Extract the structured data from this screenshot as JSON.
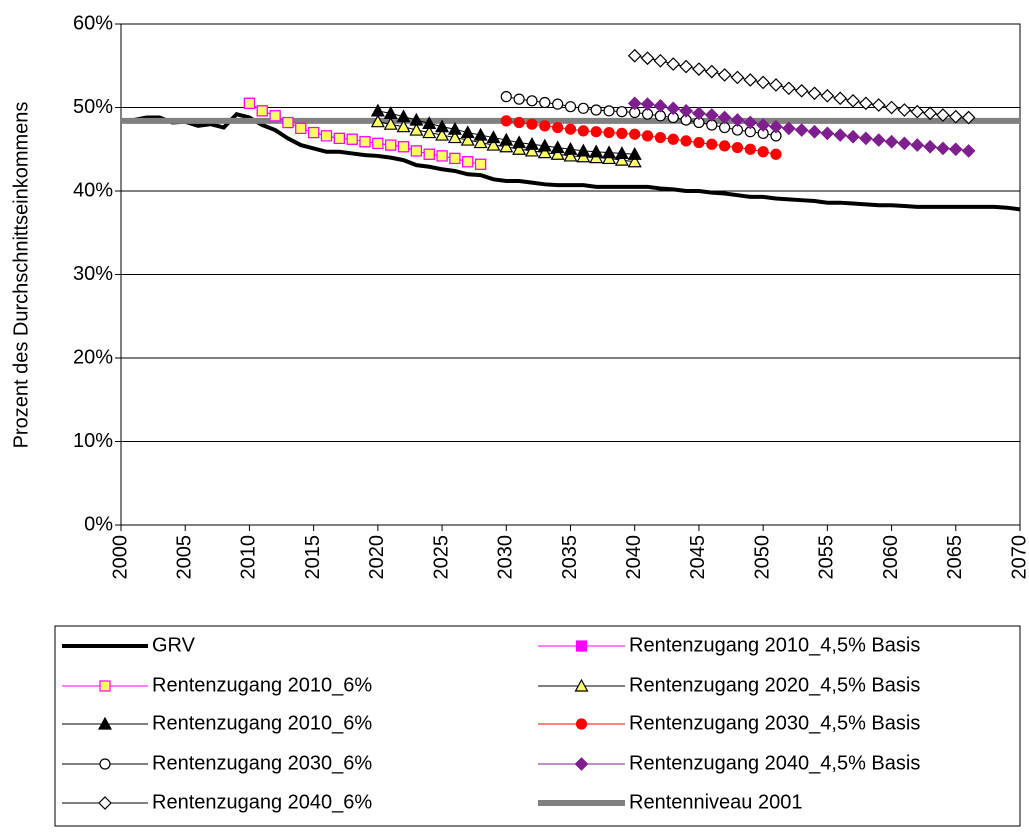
{
  "chart_data": {
    "type": "line",
    "y_label": "Prozent des Durchschnittseinkommens",
    "xlim": [
      2000,
      2070
    ],
    "xticks": [
      2000,
      2005,
      2010,
      2015,
      2020,
      2025,
      2030,
      2035,
      2040,
      2045,
      2050,
      2055,
      2060,
      2065,
      2070
    ],
    "ylim": [
      0,
      60
    ],
    "yticks": [
      {
        "value": 0,
        "label": "0%"
      },
      {
        "value": 10,
        "label": "10%"
      },
      {
        "value": 20,
        "label": "20%"
      },
      {
        "value": 30,
        "label": "30%"
      },
      {
        "value": 40,
        "label": "40%"
      },
      {
        "value": 50,
        "label": "50%"
      },
      {
        "value": 60,
        "label": "60%"
      }
    ],
    "grid": true,
    "series": [
      {
        "name": "GRV",
        "color": "#000000",
        "marker": "none",
        "marker_fill": "#000000",
        "line_width": 4,
        "x": [
          2000,
          2001,
          2002,
          2003,
          2004,
          2005,
          2006,
          2007,
          2008,
          2009,
          2010,
          2011,
          2012,
          2013,
          2014,
          2015,
          2016,
          2017,
          2018,
          2019,
          2020,
          2021,
          2022,
          2023,
          2024,
          2025,
          2026,
          2027,
          2028,
          2029,
          2030,
          2031,
          2032,
          2033,
          2034,
          2035,
          2036,
          2037,
          2038,
          2039,
          2040,
          2041,
          2042,
          2043,
          2044,
          2045,
          2046,
          2047,
          2048,
          2049,
          2050,
          2051,
          2052,
          2053,
          2054,
          2055,
          2056,
          2057,
          2058,
          2059,
          2060,
          2061,
          2062,
          2063,
          2064,
          2065,
          2066,
          2067,
          2068,
          2069,
          2070
        ],
        "values": [
          48.3,
          48.5,
          48.8,
          48.8,
          48.2,
          48.3,
          47.8,
          48.0,
          47.6,
          49.2,
          48.8,
          47.9,
          47.3,
          46.3,
          45.5,
          45.1,
          44.7,
          44.7,
          44.5,
          44.3,
          44.2,
          44.0,
          43.7,
          43.1,
          42.9,
          42.6,
          42.4,
          42.0,
          41.9,
          41.4,
          41.2,
          41.2,
          41.0,
          40.8,
          40.7,
          40.7,
          40.7,
          40.5,
          40.5,
          40.5,
          40.5,
          40.5,
          40.3,
          40.2,
          40.0,
          40.0,
          39.8,
          39.7,
          39.5,
          39.3,
          39.3,
          39.1,
          39.0,
          38.9,
          38.8,
          38.6,
          38.6,
          38.5,
          38.4,
          38.3,
          38.3,
          38.2,
          38.1,
          38.1,
          38.1,
          38.1,
          38.1,
          38.1,
          38.1,
          38.0,
          37.8
        ]
      },
      {
        "name": "Rentenzugang 2010_4,5% Basis",
        "color": "#ff00ff",
        "marker": "square",
        "marker_fill": "#ff00ff",
        "line_width": 1,
        "x": [
          2010,
          2011,
          2012,
          2013,
          2014,
          2015,
          2016,
          2017,
          2018,
          2019,
          2020,
          2021,
          2022,
          2023,
          2024,
          2025,
          2026,
          2027,
          2028
        ],
        "values": [
          50.5,
          49.6,
          49.0,
          48.2,
          47.5,
          47.0,
          46.6,
          46.3,
          46.2,
          45.9,
          45.7,
          45.5,
          45.3,
          44.8,
          44.4,
          44.2,
          43.9,
          43.5,
          43.2
        ]
      },
      {
        "name": "Rentenzugang 2010_6%",
        "color": "#ff00ff",
        "marker": "square",
        "marker_fill": "#ffff66",
        "line_width": 1,
        "x": [
          2010,
          2011,
          2012,
          2013,
          2014,
          2015,
          2016,
          2017,
          2018,
          2019,
          2020,
          2021,
          2022,
          2023,
          2024,
          2025,
          2026,
          2027,
          2028
        ],
        "values": [
          50.5,
          49.6,
          49.0,
          48.2,
          47.5,
          47.0,
          46.6,
          46.3,
          46.2,
          45.9,
          45.7,
          45.5,
          45.3,
          44.8,
          44.4,
          44.2,
          43.9,
          43.5,
          43.2
        ]
      },
      {
        "name": "Rentenzugang 2020_4,5% Basis",
        "color": "#000000",
        "marker": "triangle",
        "marker_fill": "#ffff66",
        "line_width": 1,
        "x": [
          2020,
          2021,
          2022,
          2023,
          2024,
          2025,
          2026,
          2027,
          2028,
          2029,
          2030,
          2031,
          2032,
          2033,
          2034,
          2035,
          2036,
          2037,
          2038,
          2039,
          2040
        ],
        "values": [
          48.3,
          48.0,
          47.7,
          47.3,
          47.0,
          46.7,
          46.4,
          46.1,
          45.8,
          45.5,
          45.3,
          45.0,
          44.8,
          44.6,
          44.4,
          44.2,
          44.1,
          44.0,
          43.9,
          43.7,
          43.5
        ]
      },
      {
        "name": "Rentenzugang 2010_6%",
        "color": "#000000",
        "marker": "triangle",
        "marker_fill": "#000000",
        "line_width": 1,
        "x": [
          2020,
          2021,
          2022,
          2023,
          2024,
          2025,
          2026,
          2027,
          2028,
          2029,
          2030,
          2031,
          2032,
          2033,
          2034,
          2035,
          2036,
          2037,
          2038,
          2039,
          2040
        ],
        "values": [
          49.6,
          49.3,
          48.9,
          48.5,
          48.1,
          47.7,
          47.4,
          47.0,
          46.7,
          46.4,
          46.1,
          45.8,
          45.6,
          45.4,
          45.2,
          45.0,
          44.8,
          44.7,
          44.6,
          44.5,
          44.4
        ]
      },
      {
        "name": "Rentenzugang 2030_4,5% Basis",
        "color": "#ff0000",
        "marker": "circle",
        "marker_fill": "#ff0000",
        "line_width": 1,
        "x": [
          2030,
          2031,
          2032,
          2033,
          2034,
          2035,
          2036,
          2037,
          2038,
          2039,
          2040,
          2041,
          2042,
          2043,
          2044,
          2045,
          2046,
          2047,
          2048,
          2049,
          2050,
          2051
        ],
        "values": [
          48.4,
          48.2,
          48.0,
          47.8,
          47.6,
          47.4,
          47.2,
          47.1,
          47.0,
          46.9,
          46.8,
          46.6,
          46.4,
          46.2,
          46.0,
          45.8,
          45.6,
          45.4,
          45.2,
          45.0,
          44.7,
          44.4
        ]
      },
      {
        "name": "Rentenzugang 2030_6%",
        "color": "#000000",
        "marker": "circle",
        "marker_fill": "#ffffff",
        "line_width": 1,
        "x": [
          2030,
          2031,
          2032,
          2033,
          2034,
          2035,
          2036,
          2037,
          2038,
          2039,
          2040,
          2041,
          2042,
          2043,
          2044,
          2045,
          2046,
          2047,
          2048,
          2049,
          2050,
          2051
        ],
        "values": [
          51.3,
          51.0,
          50.8,
          50.6,
          50.4,
          50.1,
          49.9,
          49.7,
          49.6,
          49.5,
          49.4,
          49.2,
          49.0,
          48.8,
          48.5,
          48.2,
          47.9,
          47.6,
          47.3,
          47.1,
          46.9,
          46.6
        ]
      },
      {
        "name": "Rentenzugang 2040_4,5% Basis",
        "color": "#7f1f8f",
        "marker": "diamond",
        "marker_fill": "#7f1f8f",
        "line_width": 1,
        "x": [
          2040,
          2041,
          2042,
          2043,
          2044,
          2045,
          2046,
          2047,
          2048,
          2049,
          2050,
          2051,
          2052,
          2053,
          2054,
          2055,
          2056,
          2057,
          2058,
          2059,
          2060,
          2061,
          2062,
          2063,
          2064,
          2065,
          2066
        ],
        "values": [
          50.5,
          50.4,
          50.2,
          49.9,
          49.6,
          49.3,
          49.1,
          48.8,
          48.5,
          48.2,
          47.9,
          47.7,
          47.5,
          47.3,
          47.1,
          46.9,
          46.7,
          46.5,
          46.3,
          46.1,
          45.9,
          45.7,
          45.5,
          45.3,
          45.1,
          45.0,
          44.8
        ]
      },
      {
        "name": "Rentenzugang 2040_6%",
        "color": "#000000",
        "marker": "diamond",
        "marker_fill": "#ffffff",
        "line_width": 1,
        "x": [
          2040,
          2041,
          2042,
          2043,
          2044,
          2045,
          2046,
          2047,
          2048,
          2049,
          2050,
          2051,
          2052,
          2053,
          2054,
          2055,
          2056,
          2057,
          2058,
          2059,
          2060,
          2061,
          2062,
          2063,
          2064,
          2065,
          2066
        ],
        "values": [
          56.2,
          55.9,
          55.6,
          55.2,
          54.9,
          54.6,
          54.3,
          53.9,
          53.6,
          53.3,
          53.0,
          52.7,
          52.3,
          52.0,
          51.7,
          51.4,
          51.1,
          50.8,
          50.5,
          50.3,
          50.0,
          49.7,
          49.5,
          49.3,
          49.1,
          48.9,
          48.8
        ]
      },
      {
        "name": "Rentenniveau 2001",
        "color": "#808080",
        "marker": "none",
        "marker_fill": "#808080",
        "line_width": 6,
        "x": [
          2000,
          2070
        ],
        "values": [
          48.4,
          48.4
        ]
      }
    ]
  }
}
